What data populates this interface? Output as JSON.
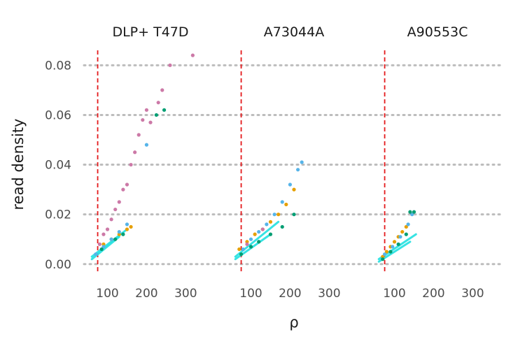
{
  "chart_data": {
    "type": "scatter",
    "title": "",
    "xlabel": "ρ",
    "ylabel": "read density",
    "xlim": [
      40,
      380
    ],
    "ylim": [
      -0.004,
      0.086
    ],
    "x_ticks": [
      100,
      200,
      300
    ],
    "x_tick_labels": [
      "100",
      "200",
      "300"
    ],
    "y_ticks": [
      0.0,
      0.02,
      0.04,
      0.06,
      0.08
    ],
    "y_tick_labels": [
      "0.00",
      "0.02",
      "0.04",
      "0.06",
      "0.08"
    ],
    "grid": "horizontal dotted",
    "legend": "none",
    "threshold_x": 75,
    "colors": {
      "pink": "#cc79a7",
      "orange": "#e69f00",
      "blue": "#56b4e9",
      "green": "#009e73",
      "fit": "#22e0e0",
      "threshold": "#e41a1c"
    },
    "panels": [
      {
        "title": "DLP+ T47D",
        "series": [
          {
            "name": "pink",
            "color": "#cc79a7",
            "points": [
              [
                80,
                0.008
              ],
              [
                90,
                0.012
              ],
              [
                100,
                0.014
              ],
              [
                110,
                0.018
              ],
              [
                120,
                0.022
              ],
              [
                130,
                0.025
              ],
              [
                140,
                0.03
              ],
              [
                150,
                0.032
              ],
              [
                160,
                0.04
              ],
              [
                170,
                0.045
              ],
              [
                180,
                0.052
              ],
              [
                190,
                0.058
              ],
              [
                200,
                0.062
              ],
              [
                210,
                0.057
              ],
              [
                230,
                0.065
              ],
              [
                240,
                0.07
              ],
              [
                260,
                0.08
              ],
              [
                318,
                0.084
              ]
            ]
          },
          {
            "name": "orange",
            "color": "#e69f00",
            "points": [
              [
                90,
                0.008
              ],
              [
                110,
                0.01
              ],
              [
                130,
                0.012
              ],
              [
                150,
                0.014
              ],
              [
                160,
                0.015
              ]
            ]
          },
          {
            "name": "blue",
            "color": "#56b4e9",
            "points": [
              [
                70,
                0.004
              ],
              [
                90,
                0.007
              ],
              [
                110,
                0.01
              ],
              [
                130,
                0.013
              ],
              [
                150,
                0.016
              ],
              [
                200,
                0.048
              ]
            ]
          },
          {
            "name": "green",
            "color": "#009e73",
            "points": [
              [
                85,
                0.006
              ],
              [
                120,
                0.01
              ],
              [
                140,
                0.012
              ],
              [
                225,
                0.06
              ],
              [
                245,
                0.062
              ]
            ]
          }
        ],
        "fits": [
          {
            "x": [
              60,
              150
            ],
            "y": [
              0.003,
              0.014
            ]
          },
          {
            "x": [
              60,
              130
            ],
            "y": [
              0.002,
              0.011
            ]
          }
        ]
      },
      {
        "title": "A73044A",
        "series": [
          {
            "name": "orange",
            "color": "#e69f00",
            "points": [
              [
                70,
                0.006
              ],
              [
                90,
                0.009
              ],
              [
                110,
                0.012
              ],
              [
                130,
                0.014
              ],
              [
                150,
                0.017
              ],
              [
                170,
                0.02
              ],
              [
                190,
                0.024
              ],
              [
                210,
                0.03
              ]
            ]
          },
          {
            "name": "blue",
            "color": "#56b4e9",
            "points": [
              [
                80,
                0.006
              ],
              [
                100,
                0.01
              ],
              [
                120,
                0.013
              ],
              [
                140,
                0.016
              ],
              [
                160,
                0.02
              ],
              [
                180,
                0.025
              ],
              [
                200,
                0.032
              ],
              [
                220,
                0.038
              ],
              [
                230,
                0.041
              ]
            ]
          },
          {
            "name": "green",
            "color": "#009e73",
            "points": [
              [
                75,
                0.004
              ],
              [
                100,
                0.007
              ],
              [
                120,
                0.009
              ],
              [
                150,
                0.012
              ],
              [
                180,
                0.015
              ],
              [
                210,
                0.02
              ]
            ]
          },
          {
            "name": "pink",
            "color": "#cc79a7",
            "points": [
              [
                90,
                0.008
              ],
              [
                130,
                0.014
              ]
            ]
          }
        ],
        "fits": [
          {
            "x": [
              60,
              170
            ],
            "y": [
              0.003,
              0.017
            ]
          },
          {
            "x": [
              60,
              150
            ],
            "y": [
              0.002,
              0.012
            ]
          }
        ]
      },
      {
        "title": "A90553C",
        "series": [
          {
            "name": "orange",
            "color": "#e69f00",
            "points": [
              [
                70,
                0.003
              ],
              [
                80,
                0.005
              ],
              [
                90,
                0.007
              ],
              [
                100,
                0.009
              ],
              [
                110,
                0.011
              ],
              [
                120,
                0.013
              ],
              [
                130,
                0.015
              ]
            ]
          },
          {
            "name": "blue",
            "color": "#56b4e9",
            "points": [
              [
                75,
                0.004
              ],
              [
                95,
                0.007
              ],
              [
                115,
                0.011
              ],
              [
                135,
                0.016
              ],
              [
                145,
                0.02
              ]
            ]
          },
          {
            "name": "green",
            "color": "#009e73",
            "points": [
              [
                70,
                0.002
              ],
              [
                90,
                0.005
              ],
              [
                110,
                0.008
              ],
              [
                130,
                0.012
              ],
              [
                140,
                0.021
              ],
              [
                150,
                0.021
              ]
            ]
          }
        ],
        "fits": [
          {
            "x": [
              60,
              155
            ],
            "y": [
              0.002,
              0.012
            ]
          },
          {
            "x": [
              60,
              140
            ],
            "y": [
              0.001,
              0.009
            ]
          }
        ]
      }
    ]
  }
}
